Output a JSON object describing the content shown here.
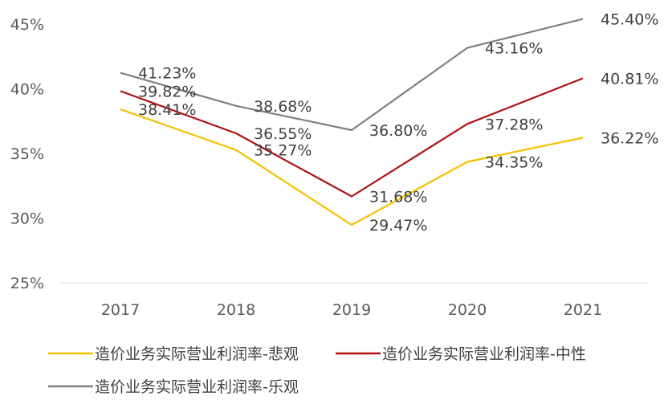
{
  "chart_data": {
    "type": "line",
    "categories": [
      "2017",
      "2018",
      "2019",
      "2020",
      "2021"
    ],
    "ylim": [
      25,
      45
    ],
    "yticks": [
      "25%",
      "30%",
      "35%",
      "40%",
      "45%"
    ],
    "grid": false,
    "legend_position": "bottom",
    "series": [
      {
        "name": "造价业务实际营业利润率-悲观",
        "color": "#F5C000",
        "values": [
          38.41,
          35.27,
          29.47,
          34.35,
          36.22
        ],
        "labels": [
          "38.41%",
          "35.27%",
          "29.47%",
          "34.35%",
          "36.22%"
        ]
      },
      {
        "name": "造价业务实际营业利润率-中性",
        "color": "#B01010",
        "values": [
          39.82,
          36.55,
          31.68,
          37.28,
          40.81
        ],
        "labels": [
          "39.82%",
          "36.55%",
          "31.68%",
          "37.28%",
          "40.81%"
        ]
      },
      {
        "name": "造价业务实际营业利润率-乐观",
        "color": "#808080",
        "values": [
          41.23,
          38.68,
          36.8,
          43.16,
          45.4
        ],
        "labels": [
          "41.23%",
          "38.68%",
          "36.80%",
          "43.16%",
          "45.40%"
        ]
      }
    ]
  }
}
